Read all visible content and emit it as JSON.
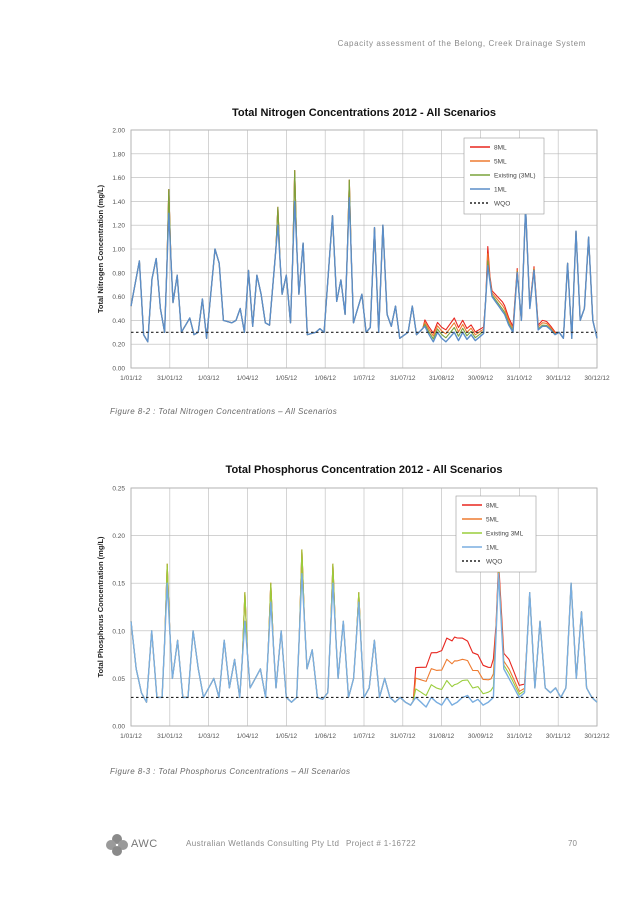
{
  "header": {
    "text": "Capacity assessment of the Belong, Creek Drainage System"
  },
  "chart_data": [
    {
      "type": "line",
      "title": "Total Nitrogen Concentrations 2012 - All Scenarios",
      "xlabel": "",
      "ylabel": "Total Nitrogen Concentration (mg/L)",
      "ylim": [
        0,
        2
      ],
      "yticks": [
        "0.00",
        "0.20",
        "0.40",
        "0.60",
        "0.80",
        "1.00",
        "1.20",
        "1.40",
        "1.60",
        "1.80",
        "2.00"
      ],
      "xticks": [
        "1/01/12",
        "31/01/12",
        "1/03/12",
        "1/04/12",
        "1/05/12",
        "1/06/12",
        "1/07/12",
        "31/07/12",
        "31/08/12",
        "30/09/12",
        "31/10/12",
        "30/11/12",
        "30/12/12"
      ],
      "legend_position": "top-right",
      "series": [
        {
          "name": "8ML",
          "color": "#e8261f"
        },
        {
          "name": "5ML",
          "color": "#ee7b30"
        },
        {
          "name": "Existing (3ML)",
          "color": "#7aa33c"
        },
        {
          "name": "1ML",
          "color": "#5b8ec9"
        },
        {
          "name": "WQO",
          "color": "#222222",
          "value": 0.3,
          "style": "dashed"
        }
      ],
      "base": [
        [
          0,
          0.52
        ],
        [
          2,
          0.9
        ],
        [
          3,
          0.28
        ],
        [
          4,
          0.22
        ],
        [
          5,
          0.75
        ],
        [
          6,
          0.92
        ],
        [
          7,
          0.5
        ],
        [
          8,
          0.3
        ],
        [
          9,
          1.3
        ],
        [
          10,
          0.55
        ],
        [
          11,
          0.78
        ],
        [
          12,
          0.3
        ],
        [
          14,
          0.42
        ],
        [
          15,
          0.28
        ],
        [
          16,
          0.3
        ],
        [
          17,
          0.58
        ],
        [
          18,
          0.25
        ],
        [
          20,
          1.0
        ],
        [
          21,
          0.88
        ],
        [
          22,
          0.4
        ],
        [
          24,
          0.38
        ],
        [
          25,
          0.4
        ],
        [
          26,
          0.5
        ],
        [
          27,
          0.3
        ],
        [
          28,
          0.82
        ],
        [
          29,
          0.35
        ],
        [
          30,
          0.78
        ],
        [
          31,
          0.62
        ],
        [
          32,
          0.38
        ],
        [
          33,
          0.36
        ],
        [
          35,
          1.2
        ],
        [
          36,
          0.62
        ],
        [
          37,
          0.78
        ],
        [
          38,
          0.38
        ],
        [
          39,
          1.4
        ],
        [
          40,
          0.62
        ],
        [
          41,
          1.05
        ],
        [
          42,
          0.28
        ],
        [
          44,
          0.3
        ],
        [
          45,
          0.33
        ],
        [
          46,
          0.3
        ],
        [
          48,
          1.28
        ],
        [
          49,
          0.56
        ],
        [
          50,
          0.74
        ],
        [
          51,
          0.45
        ],
        [
          52,
          1.43
        ],
        [
          53,
          0.38
        ],
        [
          54,
          0.5
        ],
        [
          55,
          0.62
        ],
        [
          56,
          0.3
        ],
        [
          57,
          0.34
        ],
        [
          58,
          1.18
        ],
        [
          59,
          0.3
        ],
        [
          60,
          1.2
        ],
        [
          61,
          0.45
        ],
        [
          62,
          0.35
        ],
        [
          63,
          0.52
        ],
        [
          64,
          0.25
        ],
        [
          66,
          0.3
        ],
        [
          67,
          0.52
        ],
        [
          68,
          0.28
        ],
        [
          70,
          0.35
        ],
        [
          71,
          0.28
        ],
        [
          72,
          0.22
        ],
        [
          73,
          0.3
        ],
        [
          74,
          0.25
        ],
        [
          75,
          0.22
        ],
        [
          76,
          0.26
        ],
        [
          77,
          0.3
        ],
        [
          78,
          0.23
        ],
        [
          79,
          0.3
        ],
        [
          80,
          0.24
        ],
        [
          81,
          0.28
        ],
        [
          82,
          0.23
        ],
        [
          84,
          0.29
        ],
        [
          85,
          0.86
        ],
        [
          86,
          0.6
        ],
        [
          87,
          0.55
        ],
        [
          88,
          0.5
        ],
        [
          89,
          0.45
        ],
        [
          90,
          0.36
        ],
        [
          91,
          0.3
        ],
        [
          92,
          0.8
        ],
        [
          93,
          0.4
        ],
        [
          94,
          1.35
        ],
        [
          95,
          0.5
        ],
        [
          96,
          0.82
        ],
        [
          97,
          0.32
        ],
        [
          98,
          0.35
        ],
        [
          99,
          0.35
        ],
        [
          100,
          0.32
        ],
        [
          101,
          0.28
        ],
        [
          102,
          0.3
        ],
        [
          103,
          0.25
        ],
        [
          104,
          0.88
        ],
        [
          105,
          0.25
        ],
        [
          106,
          1.15
        ],
        [
          107,
          0.4
        ],
        [
          108,
          0.5
        ],
        [
          109,
          1.1
        ],
        [
          110,
          0.4
        ],
        [
          111,
          0.25
        ]
      ],
      "bumps": [
        {
          "from": 70,
          "to": 84,
          "amp": [
            0.12,
            0.08,
            0.04,
            0
          ]
        },
        {
          "from": 85,
          "to": 92,
          "amp": [
            0.08,
            0.05,
            0.02,
            0
          ]
        },
        {
          "from": 95,
          "to": 101,
          "amp": [
            0.05,
            0.03,
            0.01,
            0
          ]
        }
      ],
      "spikes": [
        {
          "x": 9,
          "v": [
            1.5,
            1.5,
            1.5,
            1.3
          ]
        },
        {
          "x": 39,
          "v": [
            1.66,
            1.66,
            1.66,
            1.4
          ]
        },
        {
          "x": 35,
          "v": [
            1.35,
            1.35,
            1.35,
            1.2
          ]
        },
        {
          "x": 52,
          "v": [
            1.58,
            1.58,
            1.58,
            1.43
          ]
        },
        {
          "x": 85,
          "v": [
            1.02,
            0.96,
            0.9,
            0.86
          ]
        }
      ]
    },
    {
      "type": "line",
      "title": "Total Phosphorus Concentration 2012 - All Scenarios",
      "xlabel": "",
      "ylabel": "Total Phosphorus Concentration (mg/L)",
      "ylim": [
        0,
        0.25
      ],
      "yticks": [
        "0.00",
        "0.05",
        "0.10",
        "0.15",
        "0.20",
        "0.25"
      ],
      "xticks": [
        "1/01/12",
        "31/01/12",
        "1/03/12",
        "1/04/12",
        "1/05/12",
        "1/06/12",
        "1/07/12",
        "31/07/12",
        "31/08/12",
        "30/09/12",
        "31/10/12",
        "30/11/12",
        "30/12/12"
      ],
      "legend_position": "top-right",
      "series": [
        {
          "name": "8ML",
          "color": "#e8261f"
        },
        {
          "name": "5ML",
          "color": "#ee7b30"
        },
        {
          "name": "Existing 3ML",
          "color": "#9acd3c"
        },
        {
          "name": "1ML",
          "color": "#7aaee0"
        },
        {
          "name": "WQO",
          "color": "#222222",
          "value": 0.03,
          "style": "dashed"
        }
      ],
      "base": [
        [
          0,
          0.11
        ],
        [
          1,
          0.06
        ],
        [
          2,
          0.035
        ],
        [
          3,
          0.025
        ],
        [
          4,
          0.1
        ],
        [
          5,
          0.03
        ],
        [
          6,
          0.03
        ],
        [
          7,
          0.15
        ],
        [
          8,
          0.05
        ],
        [
          9,
          0.09
        ],
        [
          10,
          0.03
        ],
        [
          11,
          0.03
        ],
        [
          12,
          0.1
        ],
        [
          13,
          0.06
        ],
        [
          14,
          0.03
        ],
        [
          15,
          0.04
        ],
        [
          16,
          0.05
        ],
        [
          17,
          0.03
        ],
        [
          18,
          0.09
        ],
        [
          19,
          0.04
        ],
        [
          20,
          0.07
        ],
        [
          21,
          0.03
        ],
        [
          22,
          0.11
        ],
        [
          23,
          0.04
        ],
        [
          24,
          0.05
        ],
        [
          25,
          0.06
        ],
        [
          26,
          0.03
        ],
        [
          27,
          0.13
        ],
        [
          28,
          0.04
        ],
        [
          29,
          0.1
        ],
        [
          30,
          0.03
        ],
        [
          31,
          0.025
        ],
        [
          32,
          0.03
        ],
        [
          33,
          0.16
        ],
        [
          34,
          0.06
        ],
        [
          35,
          0.08
        ],
        [
          36,
          0.03
        ],
        [
          37,
          0.028
        ],
        [
          38,
          0.035
        ],
        [
          39,
          0.15
        ],
        [
          40,
          0.05
        ],
        [
          41,
          0.11
        ],
        [
          42,
          0.03
        ],
        [
          43,
          0.05
        ],
        [
          44,
          0.13
        ],
        [
          45,
          0.03
        ],
        [
          46,
          0.04
        ],
        [
          47,
          0.09
        ],
        [
          48,
          0.03
        ],
        [
          49,
          0.05
        ],
        [
          50,
          0.03
        ],
        [
          51,
          0.025
        ],
        [
          52,
          0.03
        ],
        [
          53,
          0.025
        ],
        [
          54,
          0.022
        ],
        [
          55,
          0.03
        ],
        [
          56,
          0.025
        ],
        [
          57,
          0.02
        ],
        [
          58,
          0.03
        ],
        [
          59,
          0.025
        ],
        [
          60,
          0.022
        ],
        [
          61,
          0.03
        ],
        [
          62,
          0.022
        ],
        [
          63,
          0.025
        ],
        [
          64,
          0.03
        ],
        [
          65,
          0.032
        ],
        [
          66,
          0.025
        ],
        [
          67,
          0.028
        ],
        [
          68,
          0.022
        ],
        [
          69,
          0.025
        ],
        [
          70,
          0.03
        ],
        [
          71,
          0.16
        ],
        [
          72,
          0.06
        ],
        [
          73,
          0.05
        ],
        [
          74,
          0.04
        ],
        [
          75,
          0.03
        ],
        [
          76,
          0.035
        ],
        [
          77,
          0.14
        ],
        [
          78,
          0.04
        ],
        [
          79,
          0.11
        ],
        [
          80,
          0.04
        ],
        [
          81,
          0.035
        ],
        [
          82,
          0.04
        ],
        [
          83,
          0.03
        ],
        [
          84,
          0.04
        ],
        [
          85,
          0.15
        ],
        [
          86,
          0.05
        ],
        [
          87,
          0.12
        ],
        [
          88,
          0.04
        ],
        [
          89,
          0.03
        ],
        [
          90,
          0.025
        ]
      ],
      "bumps": [
        {
          "from": 55,
          "to": 70,
          "amp": [
            0.07,
            0.045,
            0.02,
            0
          ]
        },
        {
          "from": 70,
          "to": 76,
          "amp": [
            0.02,
            0.01,
            0.005,
            0
          ]
        }
      ],
      "spikes": [
        {
          "x": 7,
          "v": [
            0.17,
            0.17,
            0.17,
            0.15
          ]
        },
        {
          "x": 22,
          "v": [
            0.14,
            0.14,
            0.14,
            0.11
          ]
        },
        {
          "x": 27,
          "v": [
            0.15,
            0.15,
            0.15,
            0.13
          ]
        },
        {
          "x": 33,
          "v": [
            0.185,
            0.185,
            0.185,
            0.16
          ]
        },
        {
          "x": 39,
          "v": [
            0.17,
            0.17,
            0.17,
            0.15
          ]
        },
        {
          "x": 44,
          "v": [
            0.14,
            0.14,
            0.14,
            0.13
          ]
        }
      ]
    }
  ],
  "captions": {
    "fig1": "Figure 8-2 : Total Nitrogen Concentrations – All Scenarios",
    "fig2": "Figure 8-3 : Total Phosphorus Concentrations – All Scenarios"
  },
  "footer": {
    "logo_text": "AWC",
    "company": "Australian Wetlands Consulting Pty Ltd",
    "project": "Project # 1-16722",
    "page": "70"
  }
}
